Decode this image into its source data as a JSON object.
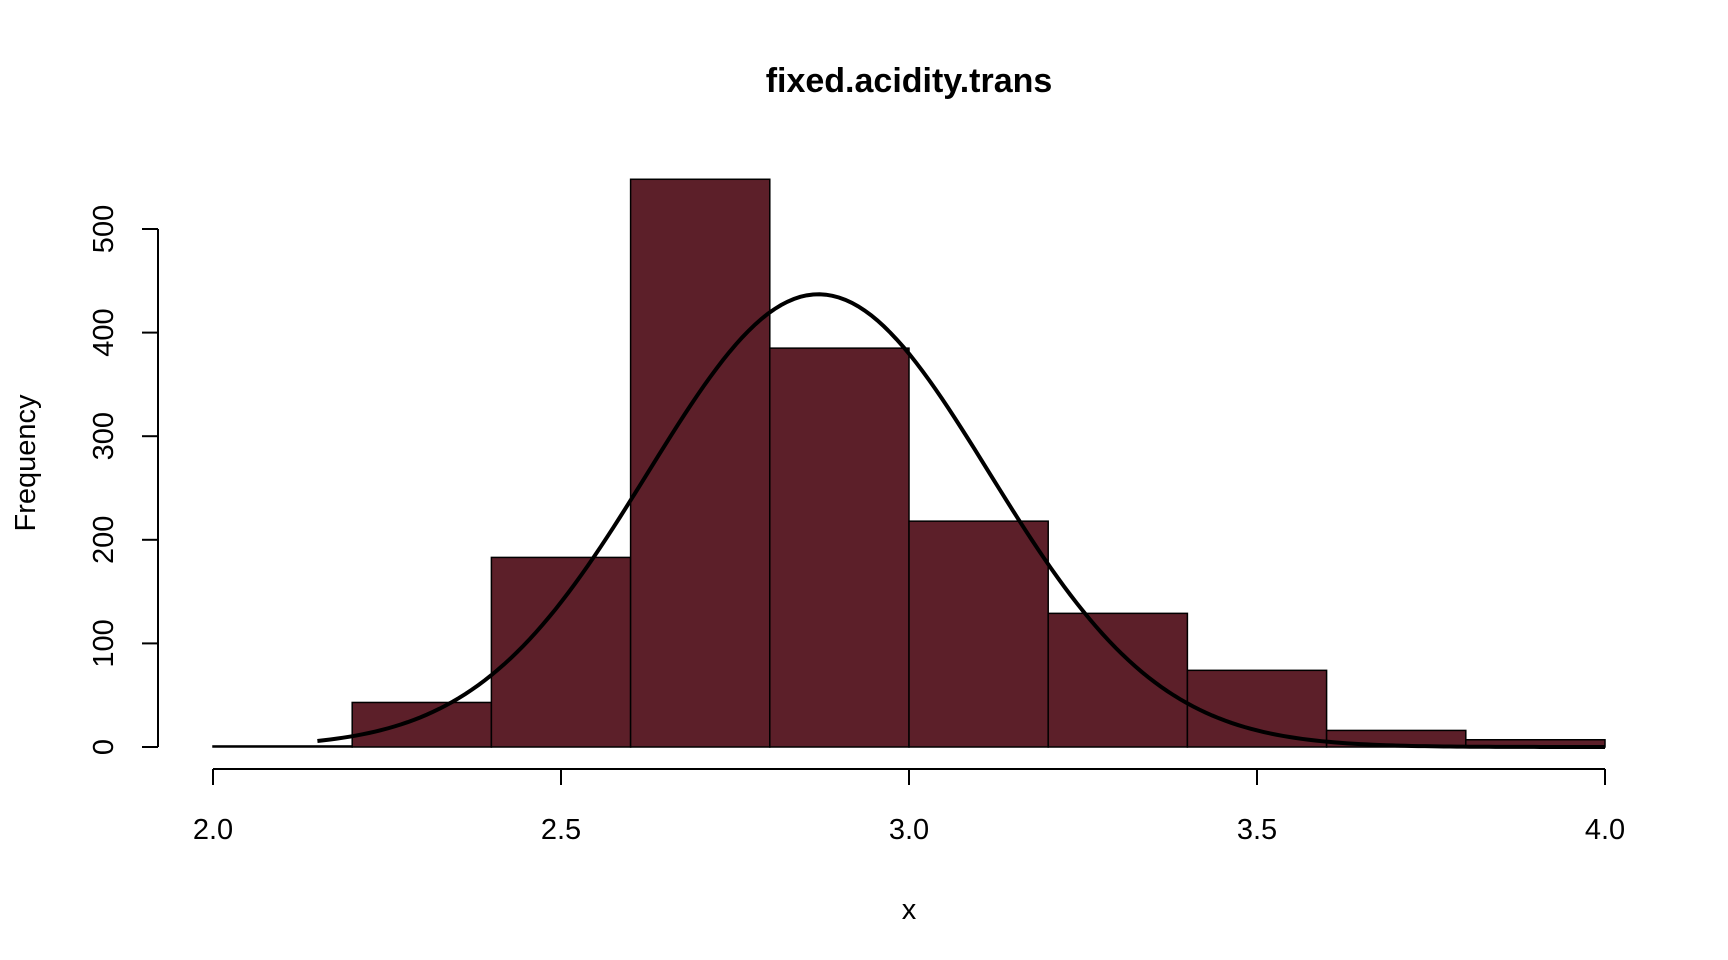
{
  "chart_data": {
    "type": "bar",
    "title": "fixed.acidity.trans",
    "xlabel": "x",
    "ylabel": "Frequency",
    "xlim": [
      2.0,
      4.0
    ],
    "ylim": [
      0,
      550
    ],
    "x_ticks": [
      "2.0",
      "2.5",
      "3.0",
      "3.5",
      "4.0"
    ],
    "y_ticks": [
      "0",
      "100",
      "200",
      "300",
      "400",
      "500"
    ],
    "bar_color": "#5c1f29",
    "bins": [
      {
        "from": 2.0,
        "to": 2.2,
        "count": 1
      },
      {
        "from": 2.2,
        "to": 2.4,
        "count": 43
      },
      {
        "from": 2.4,
        "to": 2.6,
        "count": 183
      },
      {
        "from": 2.6,
        "to": 2.8,
        "count": 548
      },
      {
        "from": 2.8,
        "to": 3.0,
        "count": 385
      },
      {
        "from": 3.0,
        "to": 3.2,
        "count": 218
      },
      {
        "from": 3.2,
        "to": 3.4,
        "count": 129
      },
      {
        "from": 3.4,
        "to": 3.6,
        "count": 74
      },
      {
        "from": 3.6,
        "to": 3.8,
        "count": 16
      },
      {
        "from": 3.8,
        "to": 4.0,
        "count": 7
      }
    ],
    "normal_curve": {
      "mean": 2.87,
      "peak": 437,
      "sd": 0.245,
      "x_range": [
        2.15,
        4.0
      ],
      "color": "#000000"
    },
    "grid": false,
    "legend": "none"
  }
}
